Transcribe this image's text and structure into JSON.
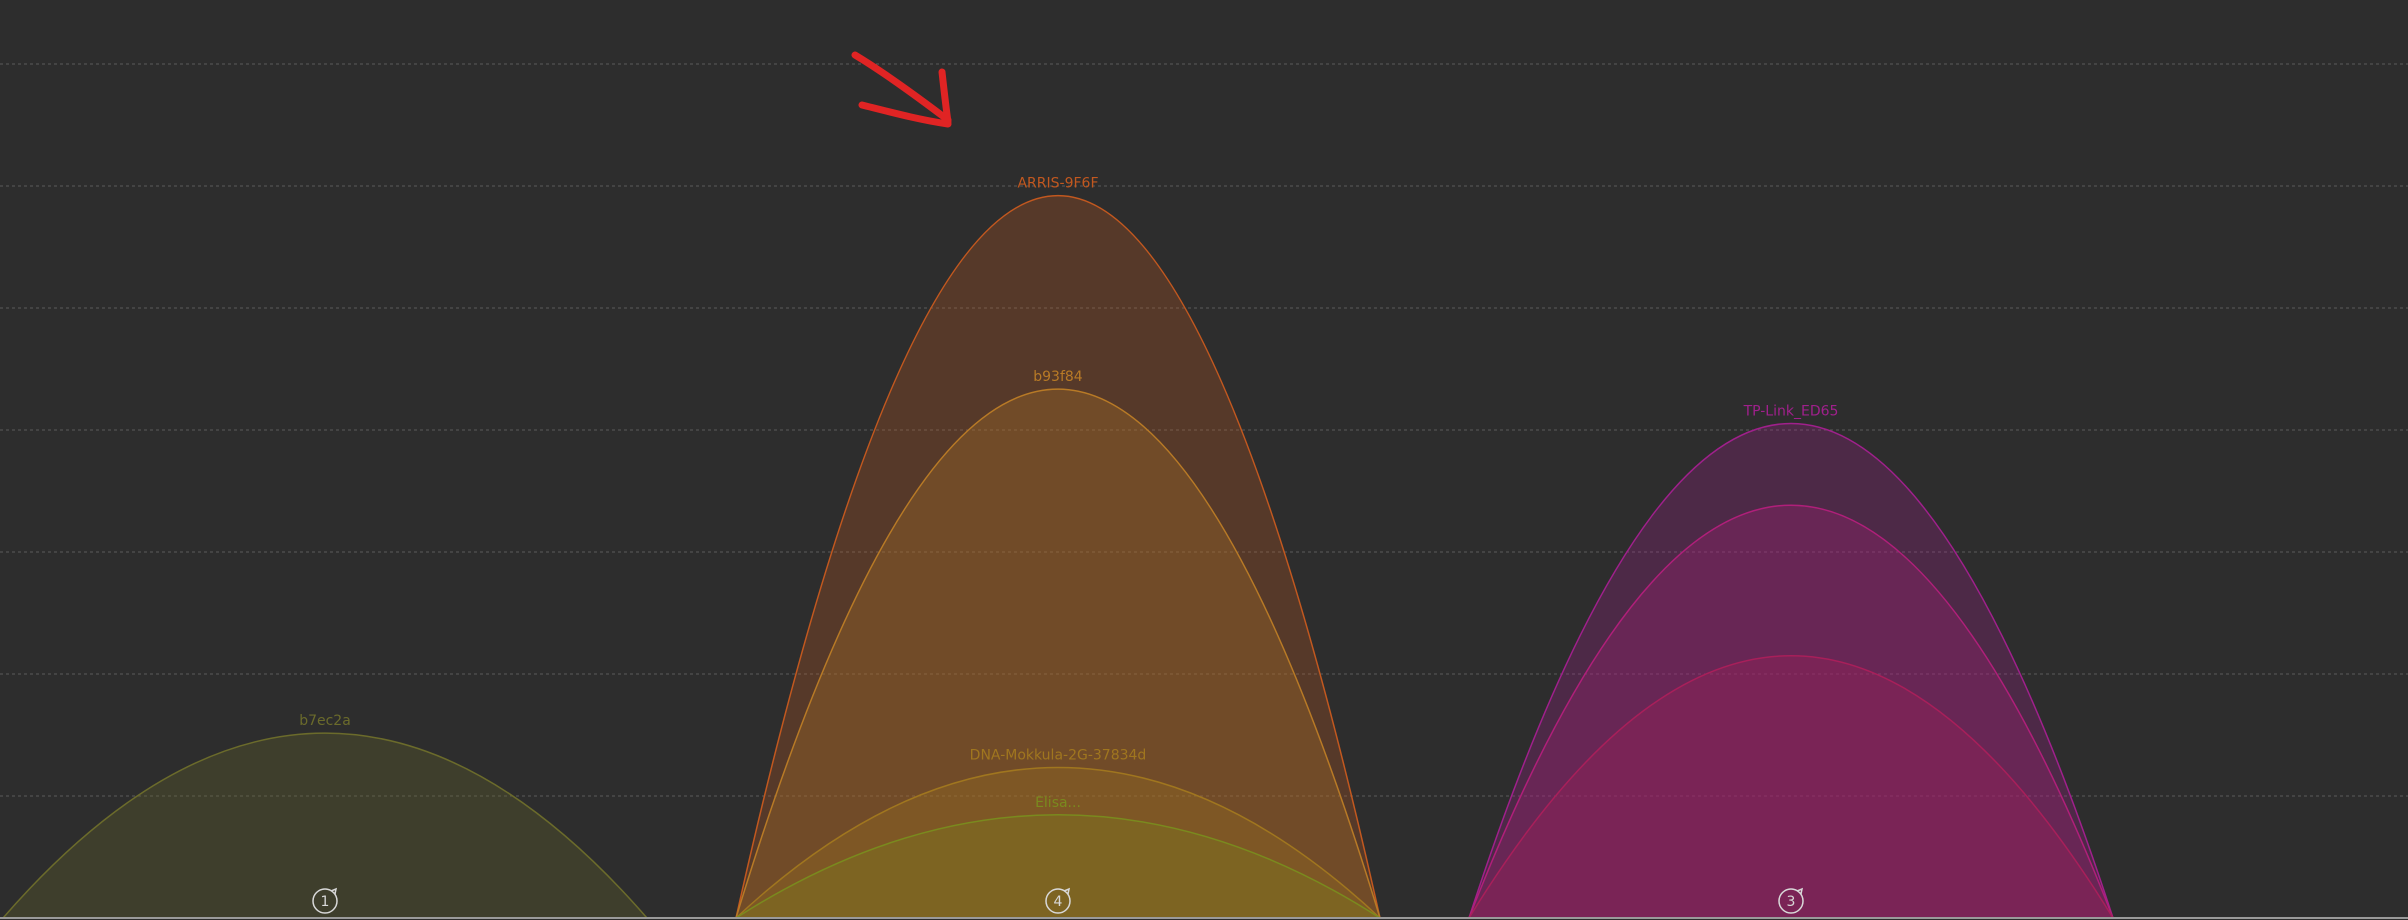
{
  "colors": {
    "background": "#2d2d2d",
    "gridline": "#5a5a5a",
    "baseline": "#9a9a9a",
    "channel_marker": "#d8d8d8",
    "annotation_arrow": "#e02424"
  },
  "chart_data": {
    "type": "area",
    "title": "",
    "xlabel": "",
    "ylabel": "",
    "grid": true,
    "channels": [
      {
        "number": "1",
        "label": "1",
        "icon": "refresh-icon"
      },
      {
        "number": "4",
        "label": "4",
        "icon": "refresh-icon"
      },
      {
        "number": "3",
        "label": "3",
        "icon": "refresh-icon"
      }
    ],
    "series": [
      {
        "name": "b7ec2a",
        "channel": "1",
        "level": 0.215,
        "color": "#6b6b2b"
      },
      {
        "name": "ARRIS-9F6F",
        "channel": "4",
        "level": 0.84,
        "color": "#c2581f"
      },
      {
        "name": "b93f84",
        "channel": "4",
        "level": 0.615,
        "color": "#b87a26"
      },
      {
        "name": "DNA-Mokkula-2G-37834d",
        "channel": "4",
        "level": 0.175,
        "color": "#a0761f"
      },
      {
        "name": "Elisa...",
        "channel": "4",
        "level": 0.12,
        "color": "#7a8a1e"
      },
      {
        "name": "TP-Link_ED65",
        "channel": "3",
        "level": 0.575,
        "color": "#a0208c"
      },
      {
        "name": "",
        "channel": "3",
        "level": 0.48,
        "color": "#b01f7a"
      },
      {
        "name": "",
        "channel": "3",
        "level": 0.305,
        "color": "#a81f5a"
      }
    ]
  }
}
